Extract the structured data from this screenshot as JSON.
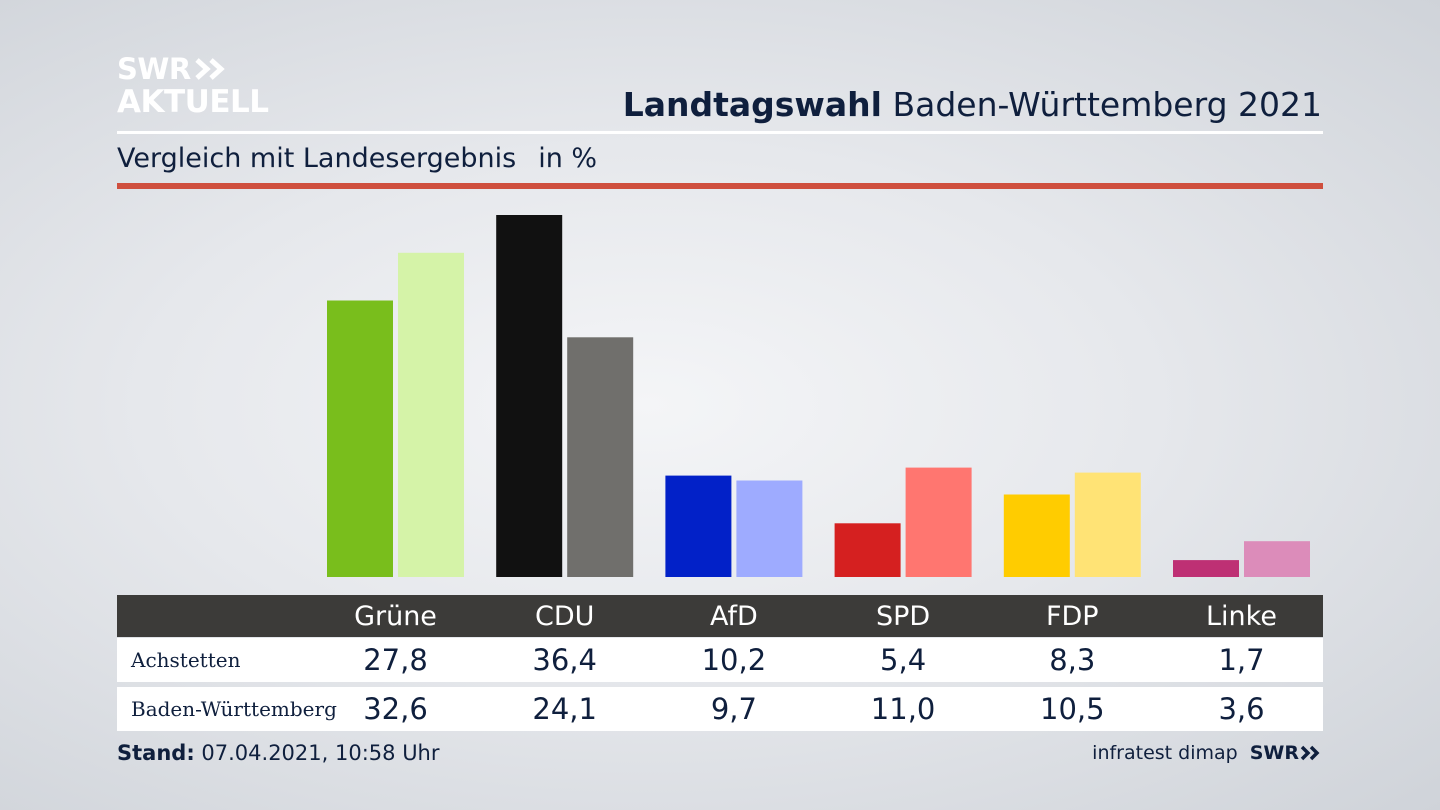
{
  "logo": {
    "line1": "SWR",
    "line2": "AKTUELL"
  },
  "header": {
    "title_bold": "Landtagswahl",
    "title_rest": "Baden-Württemberg 2021"
  },
  "subtitle": {
    "text": "Vergleich mit Landesergebnis",
    "unit": "in %"
  },
  "chart_data": {
    "type": "bar",
    "categories": [
      "Grüne",
      "CDU",
      "AfD",
      "SPD",
      "FDP",
      "Linke"
    ],
    "series": [
      {
        "name": "Achstetten",
        "values": [
          27.8,
          36.4,
          10.2,
          5.4,
          8.3,
          1.7
        ],
        "colors": [
          "#79be1c",
          "#111111",
          "#0221c8",
          "#d52020",
          "#ffcc00",
          "#be3074"
        ]
      },
      {
        "name": "Baden-Württemberg",
        "values": [
          32.6,
          24.1,
          9.7,
          11.0,
          10.5,
          3.6
        ],
        "colors": [
          "#d5f3a8",
          "#706f6c",
          "#9eabff",
          "#ff7670",
          "#ffe375",
          "#dc8cba"
        ]
      }
    ],
    "ylim": [
      0,
      36.4
    ]
  },
  "table": {
    "columns": [
      "Grüne",
      "CDU",
      "AfD",
      "SPD",
      "FDP",
      "Linke"
    ],
    "rows": [
      {
        "label": "Achstetten",
        "values": [
          "27,8",
          "36,4",
          "10,2",
          "5,4",
          "8,3",
          "1,7"
        ]
      },
      {
        "label": "Baden-Württemberg",
        "values": [
          "32,6",
          "24,1",
          "9,7",
          "11,0",
          "10,5",
          "3,6"
        ]
      }
    ]
  },
  "footer": {
    "stand_label": "Stand:",
    "stand_value": "07.04.2021, 10:58 Uhr",
    "source": "infratest dimap",
    "brand": "SWR"
  }
}
